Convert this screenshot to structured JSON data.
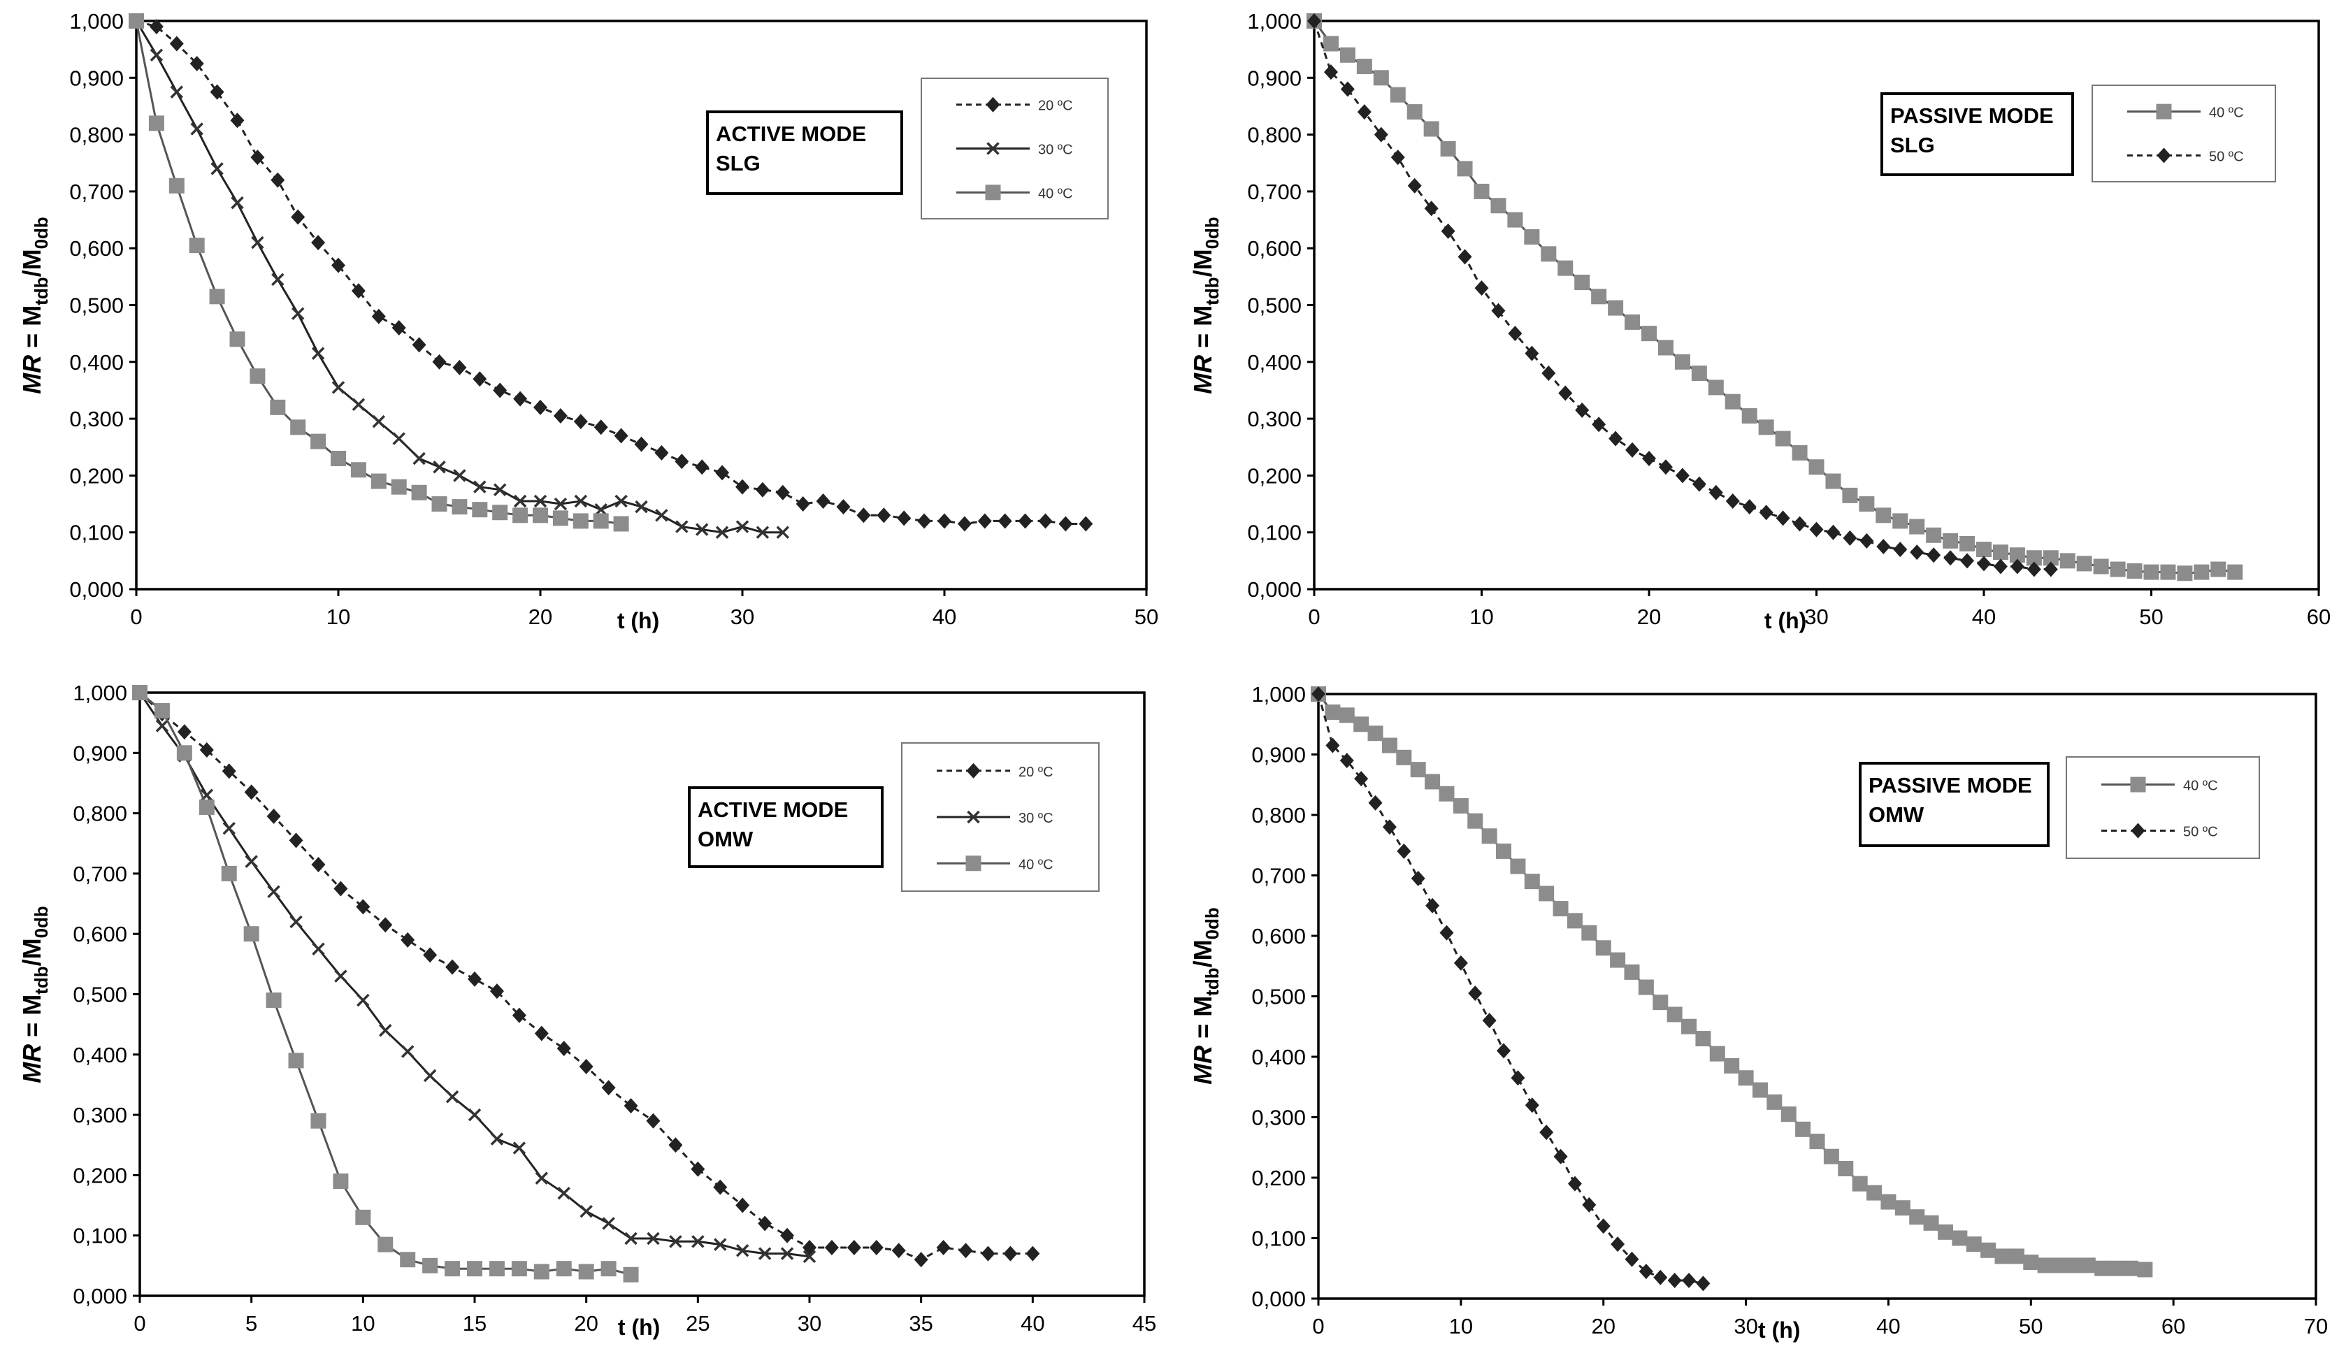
{
  "y_axis_label": {
    "prefix": "MR",
    "eq": " = M",
    "sub1": "tdb",
    "slash": "/M",
    "sub2": "0db"
  },
  "x_axis_label": "t (h)",
  "chart_data": [
    {
      "id": "active-slg",
      "type": "line",
      "box_label": [
        "ACTIVE MODE",
        "SLG"
      ],
      "xlim": [
        0,
        50
      ],
      "xticks": [
        0,
        10,
        20,
        30,
        40,
        50
      ],
      "ylim": [
        0,
        1
      ],
      "yticks": [
        "0,000",
        "0,100",
        "0,200",
        "0,300",
        "0,400",
        "0,500",
        "0,600",
        "0,700",
        "0,800",
        "0,900",
        "1,000"
      ],
      "series": [
        {
          "name": "20 ºC",
          "marker": "diamond",
          "color": "#222222",
          "dash": true,
          "x": [
            0,
            1,
            2,
            3,
            4,
            5,
            6,
            7,
            8,
            9,
            10,
            11,
            12,
            13,
            14,
            15,
            16,
            17,
            18,
            19,
            20,
            21,
            22,
            23,
            24,
            25,
            26,
            27,
            28,
            29,
            30,
            31,
            32,
            33,
            34,
            35,
            36,
            37,
            38,
            39,
            40,
            41,
            42,
            43,
            44,
            45,
            46,
            47
          ],
          "y": [
            1.0,
            0.99,
            0.96,
            0.925,
            0.875,
            0.825,
            0.76,
            0.72,
            0.655,
            0.61,
            0.57,
            0.525,
            0.48,
            0.46,
            0.43,
            0.4,
            0.39,
            0.37,
            0.35,
            0.335,
            0.32,
            0.305,
            0.295,
            0.285,
            0.27,
            0.255,
            0.24,
            0.225,
            0.215,
            0.205,
            0.18,
            0.175,
            0.17,
            0.15,
            0.155,
            0.145,
            0.13,
            0.13,
            0.125,
            0.12,
            0.12,
            0.115,
            0.12,
            0.12,
            0.12,
            0.12,
            0.115,
            0.115
          ]
        },
        {
          "name": "30 ºC",
          "marker": "cross",
          "color": "#333333",
          "dash": false,
          "x": [
            0,
            1,
            2,
            3,
            4,
            5,
            6,
            7,
            8,
            9,
            10,
            11,
            12,
            13,
            14,
            15,
            16,
            17,
            18,
            19,
            20,
            21,
            22,
            23,
            24,
            25,
            26,
            27,
            28,
            29,
            30,
            31,
            32
          ],
          "y": [
            1.0,
            0.94,
            0.875,
            0.81,
            0.74,
            0.68,
            0.61,
            0.545,
            0.485,
            0.415,
            0.355,
            0.325,
            0.295,
            0.265,
            0.23,
            0.215,
            0.2,
            0.18,
            0.175,
            0.155,
            0.155,
            0.15,
            0.155,
            0.14,
            0.155,
            0.145,
            0.13,
            0.11,
            0.105,
            0.1,
            0.11,
            0.1,
            0.1
          ]
        },
        {
          "name": "40 ºC",
          "marker": "square",
          "color": "#8c8c8c",
          "dash": false,
          "x": [
            0,
            1,
            2,
            3,
            4,
            5,
            6,
            7,
            8,
            9,
            10,
            11,
            12,
            13,
            14,
            15,
            16,
            17,
            18,
            19,
            20,
            21,
            22,
            23,
            24
          ],
          "y": [
            1.0,
            0.82,
            0.71,
            0.605,
            0.515,
            0.44,
            0.375,
            0.32,
            0.285,
            0.26,
            0.23,
            0.21,
            0.19,
            0.18,
            0.17,
            0.15,
            0.145,
            0.14,
            0.135,
            0.13,
            0.13,
            0.125,
            0.12,
            0.12,
            0.115
          ]
        }
      ]
    },
    {
      "id": "passive-slg",
      "type": "line",
      "box_label": [
        "PASSIVE MODE",
        "SLG"
      ],
      "xlim": [
        0,
        60
      ],
      "xticks": [
        0,
        10,
        20,
        30,
        40,
        50,
        60
      ],
      "ylim": [
        0,
        1
      ],
      "yticks": [
        "0,000",
        "0,100",
        "0,200",
        "0,300",
        "0,400",
        "0,500",
        "0,600",
        "0,700",
        "0,800",
        "0,900",
        "1,000"
      ],
      "series": [
        {
          "name": "40 ºC",
          "marker": "square",
          "color": "#8c8c8c",
          "dash": false,
          "x": [
            0,
            1,
            2,
            3,
            4,
            5,
            6,
            7,
            8,
            9,
            10,
            11,
            12,
            13,
            14,
            15,
            16,
            17,
            18,
            19,
            20,
            21,
            22,
            23,
            24,
            25,
            26,
            27,
            28,
            29,
            30,
            31,
            32,
            33,
            34,
            35,
            36,
            37,
            38,
            39,
            40,
            41,
            42,
            43,
            44,
            45,
            46,
            47,
            48,
            49,
            50,
            51,
            52,
            53,
            54,
            55
          ],
          "y": [
            1.0,
            0.96,
            0.94,
            0.92,
            0.9,
            0.87,
            0.84,
            0.81,
            0.775,
            0.74,
            0.7,
            0.675,
            0.65,
            0.62,
            0.59,
            0.565,
            0.54,
            0.515,
            0.495,
            0.47,
            0.45,
            0.425,
            0.4,
            0.38,
            0.355,
            0.33,
            0.305,
            0.285,
            0.265,
            0.24,
            0.215,
            0.19,
            0.165,
            0.15,
            0.13,
            0.12,
            0.11,
            0.095,
            0.085,
            0.08,
            0.07,
            0.065,
            0.06,
            0.055,
            0.055,
            0.05,
            0.045,
            0.04,
            0.035,
            0.032,
            0.03,
            0.03,
            0.028,
            0.03,
            0.035,
            0.03
          ]
        },
        {
          "name": "50 ºC",
          "marker": "diamond",
          "color": "#222222",
          "dash": true,
          "x": [
            0,
            1,
            2,
            3,
            4,
            5,
            6,
            7,
            8,
            9,
            10,
            11,
            12,
            13,
            14,
            15,
            16,
            17,
            18,
            19,
            20,
            21,
            22,
            23,
            24,
            25,
            26,
            27,
            28,
            29,
            30,
            31,
            32,
            33,
            34,
            35,
            36,
            37,
            38,
            39,
            40,
            41,
            42,
            43,
            44
          ],
          "y": [
            1.0,
            0.91,
            0.88,
            0.84,
            0.8,
            0.76,
            0.71,
            0.67,
            0.63,
            0.585,
            0.53,
            0.49,
            0.45,
            0.415,
            0.38,
            0.345,
            0.315,
            0.29,
            0.265,
            0.245,
            0.23,
            0.215,
            0.2,
            0.185,
            0.17,
            0.155,
            0.145,
            0.135,
            0.125,
            0.115,
            0.105,
            0.1,
            0.09,
            0.085,
            0.075,
            0.07,
            0.065,
            0.06,
            0.055,
            0.05,
            0.045,
            0.04,
            0.04,
            0.035,
            0.035
          ]
        }
      ]
    },
    {
      "id": "active-omw",
      "type": "line",
      "box_label": [
        "ACTIVE MODE",
        "OMW"
      ],
      "xlim": [
        0,
        45
      ],
      "xticks": [
        0,
        5,
        10,
        15,
        20,
        25,
        30,
        35,
        40,
        45
      ],
      "ylim": [
        0,
        1
      ],
      "yticks": [
        "0,000",
        "0,100",
        "0,200",
        "0,300",
        "0,400",
        "0,500",
        "0,600",
        "0,700",
        "0,800",
        "0,900",
        "1,000"
      ],
      "series": [
        {
          "name": "20 ºC",
          "marker": "diamond",
          "color": "#222222",
          "dash": true,
          "x": [
            0,
            1,
            2,
            3,
            4,
            5,
            6,
            7,
            8,
            9,
            10,
            11,
            12,
            13,
            14,
            15,
            16,
            17,
            18,
            19,
            20,
            21,
            22,
            23,
            24,
            25,
            26,
            27,
            28,
            29,
            30,
            31,
            32,
            33,
            34,
            35,
            36,
            37,
            38,
            39,
            40
          ],
          "y": [
            1.0,
            0.965,
            0.935,
            0.905,
            0.87,
            0.835,
            0.795,
            0.755,
            0.715,
            0.675,
            0.645,
            0.615,
            0.59,
            0.565,
            0.545,
            0.525,
            0.505,
            0.465,
            0.435,
            0.41,
            0.38,
            0.345,
            0.315,
            0.29,
            0.25,
            0.21,
            0.18,
            0.15,
            0.12,
            0.1,
            0.08,
            0.08,
            0.08,
            0.08,
            0.075,
            0.06,
            0.08,
            0.075,
            0.07,
            0.07,
            0.07
          ]
        },
        {
          "name": "30 ºC",
          "marker": "cross",
          "color": "#333333",
          "dash": false,
          "x": [
            0,
            1,
            2,
            3,
            4,
            5,
            6,
            7,
            8,
            9,
            10,
            11,
            12,
            13,
            14,
            15,
            16,
            17,
            18,
            19,
            20,
            21,
            22,
            23,
            24,
            25,
            26,
            27,
            28,
            29,
            30
          ],
          "y": [
            1.0,
            0.945,
            0.895,
            0.83,
            0.775,
            0.72,
            0.67,
            0.62,
            0.575,
            0.53,
            0.49,
            0.44,
            0.405,
            0.365,
            0.33,
            0.3,
            0.26,
            0.245,
            0.195,
            0.17,
            0.14,
            0.12,
            0.095,
            0.095,
            0.09,
            0.09,
            0.085,
            0.075,
            0.07,
            0.07,
            0.065
          ]
        },
        {
          "name": "40 ºC",
          "marker": "square",
          "color": "#8c8c8c",
          "dash": false,
          "x": [
            0,
            1,
            2,
            3,
            4,
            5,
            6,
            7,
            8,
            9,
            10,
            11,
            12,
            13,
            14,
            15,
            16,
            17,
            18,
            19,
            20,
            21,
            22
          ],
          "y": [
            1.0,
            0.97,
            0.9,
            0.81,
            0.7,
            0.6,
            0.49,
            0.39,
            0.29,
            0.19,
            0.13,
            0.085,
            0.06,
            0.05,
            0.045,
            0.045,
            0.045,
            0.045,
            0.04,
            0.045,
            0.04,
            0.045,
            0.035
          ]
        }
      ]
    },
    {
      "id": "passive-omw",
      "type": "line",
      "box_label": [
        "PASSIVE MODE",
        "OMW"
      ],
      "xlim": [
        0,
        70
      ],
      "xticks": [
        0,
        10,
        20,
        30,
        40,
        50,
        60,
        70
      ],
      "ylim": [
        0,
        1
      ],
      "yticks": [
        "0,000",
        "0,100",
        "0,200",
        "0,300",
        "0,400",
        "0,500",
        "0,600",
        "0,700",
        "0,800",
        "0,900",
        "1,000"
      ],
      "series": [
        {
          "name": "40 ºC",
          "marker": "square",
          "color": "#8c8c8c",
          "dash": false,
          "x": [
            0,
            1,
            2,
            3,
            4,
            5,
            6,
            7,
            8,
            9,
            10,
            11,
            12,
            13,
            14,
            15,
            16,
            17,
            18,
            19,
            20,
            21,
            22,
            23,
            24,
            25,
            26,
            27,
            28,
            29,
            30,
            31,
            32,
            33,
            34,
            35,
            36,
            37,
            38,
            39,
            40,
            41,
            42,
            43,
            44,
            45,
            46,
            47,
            48,
            49,
            50,
            51,
            52,
            53,
            54,
            55,
            56,
            57,
            58
          ],
          "y": [
            1.0,
            0.97,
            0.965,
            0.95,
            0.935,
            0.915,
            0.895,
            0.875,
            0.855,
            0.835,
            0.815,
            0.79,
            0.765,
            0.74,
            0.715,
            0.69,
            0.67,
            0.645,
            0.625,
            0.605,
            0.58,
            0.56,
            0.54,
            0.515,
            0.49,
            0.47,
            0.45,
            0.43,
            0.405,
            0.385,
            0.365,
            0.345,
            0.325,
            0.305,
            0.28,
            0.26,
            0.235,
            0.215,
            0.19,
            0.175,
            0.16,
            0.15,
            0.135,
            0.125,
            0.11,
            0.1,
            0.09,
            0.08,
            0.07,
            0.07,
            0.06,
            0.055,
            0.055,
            0.055,
            0.055,
            0.05,
            0.05,
            0.05,
            0.048
          ]
        },
        {
          "name": "50 ºC",
          "marker": "diamond",
          "color": "#222222",
          "dash": true,
          "x": [
            0,
            1,
            2,
            3,
            4,
            5,
            6,
            7,
            8,
            9,
            10,
            11,
            12,
            13,
            14,
            15,
            16,
            17,
            18,
            19,
            20,
            21,
            22,
            23,
            24,
            25,
            26,
            27
          ],
          "y": [
            1.0,
            0.915,
            0.89,
            0.86,
            0.82,
            0.78,
            0.74,
            0.695,
            0.65,
            0.605,
            0.555,
            0.505,
            0.46,
            0.41,
            0.365,
            0.32,
            0.275,
            0.235,
            0.19,
            0.155,
            0.12,
            0.09,
            0.065,
            0.045,
            0.035,
            0.03,
            0.03,
            0.025
          ]
        }
      ]
    }
  ]
}
